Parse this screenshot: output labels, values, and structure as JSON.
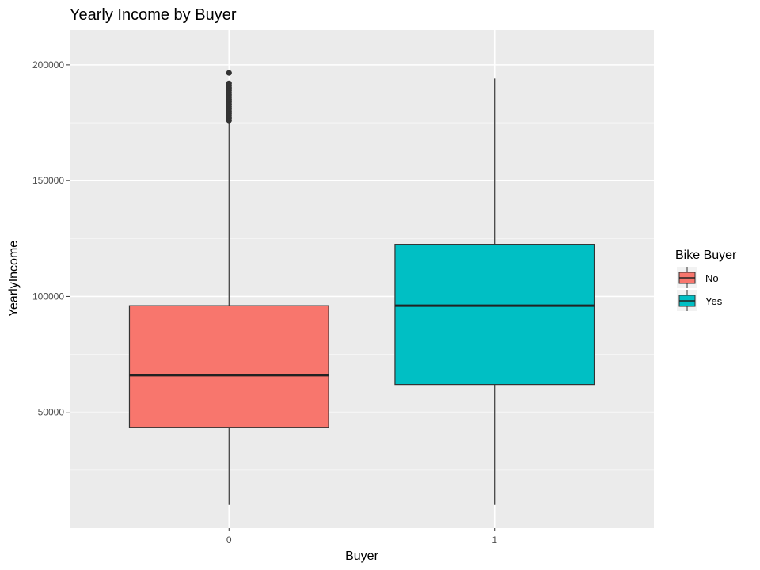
{
  "chart_data": {
    "type": "boxplot",
    "title": "Yearly Income by Buyer",
    "xlabel": "Buyer",
    "ylabel": "YearlyIncome",
    "categories": [
      "0",
      "1"
    ],
    "ylim": [
      0,
      215000
    ],
    "y_ticks": [
      50000,
      100000,
      150000,
      200000
    ],
    "y_tick_labels": [
      "50000",
      "100000",
      "150000",
      "200000"
    ],
    "y_minor_ticks": [
      25000,
      75000,
      125000,
      175000
    ],
    "grid": true,
    "series": [
      {
        "name": "No",
        "category": "0",
        "min": 10000,
        "q1": 43500,
        "median": 66000,
        "q3": 96000,
        "whisker_high": 175000,
        "outliers": [
          176000,
          177000,
          178000,
          179000,
          180000,
          181000,
          182000,
          183000,
          184000,
          185000,
          186000,
          187000,
          188000,
          189000,
          190000,
          191000,
          192000,
          196500
        ],
        "color": "#F8766D"
      },
      {
        "name": "Yes",
        "category": "1",
        "min": 10000,
        "q1": 62000,
        "median": 96000,
        "q3": 122500,
        "whisker_high": 194000,
        "outliers": [],
        "color": "#00BFC4"
      }
    ],
    "legend": {
      "title": "Bike Buyer",
      "position": "right",
      "entries": [
        {
          "label": "No",
          "color": "#F8766D"
        },
        {
          "label": "Yes",
          "color": "#00BFC4"
        }
      ]
    }
  }
}
